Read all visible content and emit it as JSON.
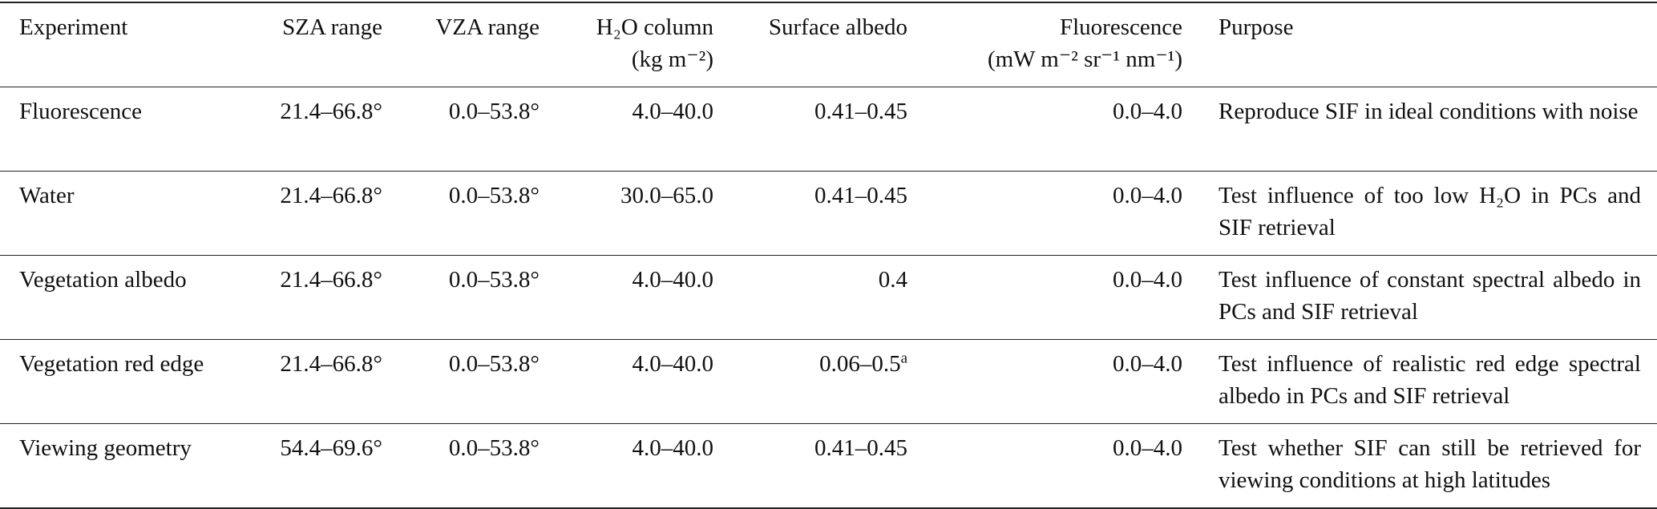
{
  "table": {
    "header": [
      [
        "Experiment"
      ],
      [
        "SZA range"
      ],
      [
        "VZA range"
      ],
      [
        "H₂O column",
        "(kg m⁻²)"
      ],
      [
        "Surface albedo"
      ],
      [
        "Fluorescence",
        "(mW m⁻² sr⁻¹ nm⁻¹)"
      ],
      [
        "Purpose"
      ]
    ],
    "rows": [
      [
        "Fluorescence",
        "21.4–66.8°",
        "0.0–53.8°",
        "4.0–40.0",
        "0.41–0.45",
        "0.0–4.0",
        "Reproduce SIF in ideal conditions with noise"
      ],
      [
        "Water",
        "21.4–66.8°",
        "0.0–53.8°",
        "30.0–65.0",
        "0.41–0.45",
        "0.0–4.0",
        "Test influence of too low H₂O in PCs and SIF retrieval"
      ],
      [
        "Vegetation albedo",
        "21.4–66.8°",
        "0.0–53.8°",
        "4.0–40.0",
        "0.4",
        "0.0–4.0",
        "Test influence of constant spectral albedo in PCs and SIF retrieval"
      ],
      [
        "Vegetation red edge",
        "21.4–66.8°",
        "0.0–53.8°",
        "4.0–40.0",
        {
          "text": "0.06–0.5",
          "note": "a"
        },
        "0.0–4.0",
        "Test influence of realistic red edge spectral albedo in PCs and SIF retrieval"
      ],
      [
        "Viewing geometry",
        "54.4–69.6°",
        "0.0–53.8°",
        "4.0–40.0",
        "0.41–0.45",
        "0.0–4.0",
        "Test whether SIF can still be retrieved for viewing conditions at high latitudes"
      ]
    ]
  }
}
